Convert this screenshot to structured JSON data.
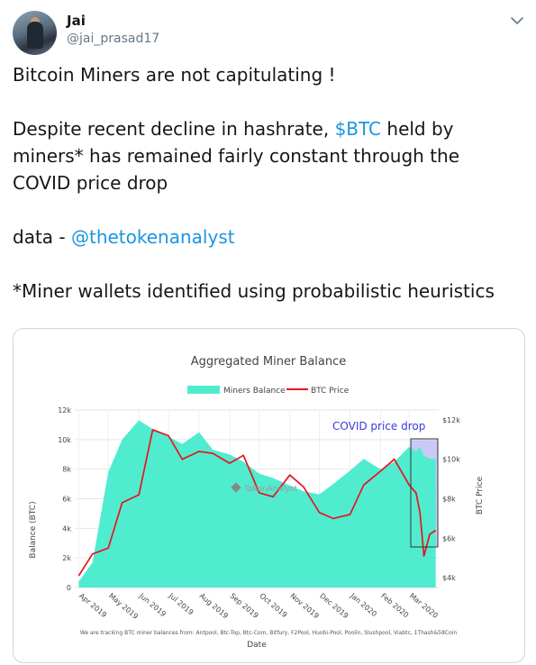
{
  "user": {
    "name": "Jai",
    "handle": "@jai_prasad17"
  },
  "tweet": {
    "line1": "Bitcoin Miners are not capitulating !",
    "line2a": "Despite recent decline in hashrate, ",
    "cashtag": "$BTC",
    "line2b": " held by",
    "line3": "miners* has remained fairly constant through the",
    "line4": "COVID price drop",
    "data_prefix": "data - ",
    "mention": "@thetokenanalyst",
    "footnote": "*Miner wallets identified using probabilistic heuristics"
  },
  "chart_data": {
    "type": "area",
    "title": "Aggregated Miner Balance",
    "legend": [
      "Miners Balance",
      "BTC Price"
    ],
    "xlabel": "Date",
    "ylabel_left": "Balance (BTC)",
    "ylabel_right": "BTC Price",
    "y_left_ticks": [
      "0",
      "2k",
      "4k",
      "6k",
      "8k",
      "10k",
      "12k"
    ],
    "y_right_ticks": [
      "$4k",
      "$6k",
      "$8k",
      "$10k",
      "$12k"
    ],
    "x_ticks": [
      "Apr 2019",
      "May 2019",
      "Jun 2019",
      "Jul 2019",
      "Aug 2019",
      "Sep 2019",
      "Oct 2019",
      "Nov 2019",
      "Dec 2019",
      "Jan 2020",
      "Feb 2020",
      "Mar 2020"
    ],
    "annotation": "COVID price drop",
    "watermark": "TokenAnalyst",
    "footnote": "We are tracking BTC miner balances from: Antpool, Btc-Top, Btc-Com, Bitfury, F2Pool, Huobi-Pool, Poolin, Slushpool, Viabtc, 1Thash&58Coin",
    "ylim_left": [
      0,
      12000
    ],
    "ylim_right": [
      3500,
      12500
    ],
    "x": [
      "2019-04-01",
      "2019-04-15",
      "2019-05-01",
      "2019-05-15",
      "2019-06-01",
      "2019-06-15",
      "2019-07-01",
      "2019-07-15",
      "2019-08-01",
      "2019-08-15",
      "2019-09-01",
      "2019-09-15",
      "2019-10-01",
      "2019-10-15",
      "2019-11-01",
      "2019-11-15",
      "2019-12-01",
      "2019-12-15",
      "2020-01-01",
      "2020-01-15",
      "2020-02-01",
      "2020-02-15",
      "2020-03-01",
      "2020-03-08",
      "2020-03-12",
      "2020-03-16",
      "2020-03-22",
      "2020-03-28"
    ],
    "series": [
      {
        "name": "Miners Balance",
        "color": "#50ecd0",
        "values": [
          400,
          1700,
          7800,
          10000,
          11300,
          10700,
          10200,
          9700,
          10500,
          9300,
          9000,
          8500,
          7700,
          7400,
          6900,
          6500,
          6300,
          7000,
          7900,
          8700,
          8000,
          8500,
          9500,
          9200,
          9500,
          8900,
          8700,
          8700
        ]
      },
      {
        "name": "BTC Price",
        "color": "#e8141c",
        "values": [
          4100,
          5200,
          5500,
          7800,
          8200,
          11500,
          11200,
          10000,
          10400,
          10300,
          9800,
          10200,
          8300,
          8100,
          9200,
          8600,
          7300,
          7000,
          7200,
          8700,
          9400,
          10000,
          8700,
          8300,
          7300,
          5100,
          6200,
          6400
        ]
      }
    ],
    "colors": {
      "area": "#50ecd0",
      "price": "#e8141c",
      "highlight": "#b8bdf2",
      "annotation": "#3a3ae0",
      "link": "#1b95e0"
    }
  }
}
